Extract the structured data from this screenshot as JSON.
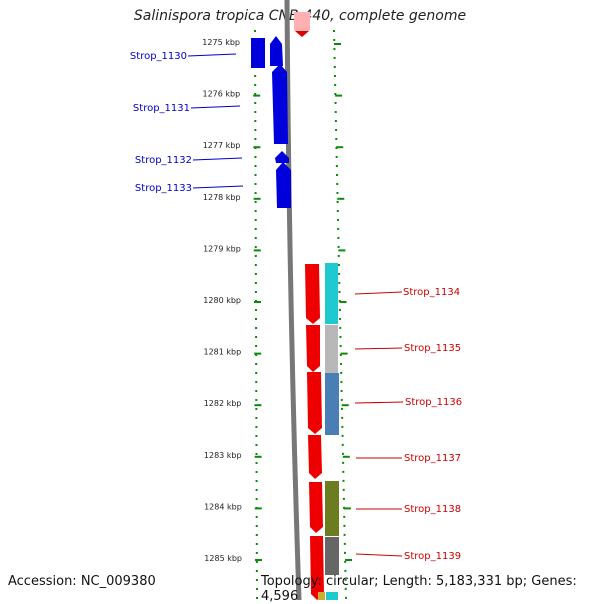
{
  "title": "Salinispora tropica CNB-440, complete genome",
  "accession": "Accession: NC_009380",
  "topology": "Topology: circular; Length: 5,183,331 bp; Genes: 4,596",
  "axis": {
    "unit": "kbp",
    "ticks": [
      {
        "value": 1275,
        "label": "1275 kbp"
      },
      {
        "value": 1276,
        "label": "1276 kbp"
      },
      {
        "value": 1277,
        "label": "1277 kbp"
      },
      {
        "value": 1278,
        "label": "1278 kbp"
      },
      {
        "value": 1279,
        "label": "1279 kbp"
      },
      {
        "value": 1280,
        "label": "1280 kbp"
      },
      {
        "value": 1281,
        "label": "1281 kbp"
      },
      {
        "value": 1282,
        "label": "1282 kbp"
      },
      {
        "value": 1283,
        "label": "1283 kbp"
      },
      {
        "value": 1284,
        "label": "1284 kbp"
      },
      {
        "value": 1285,
        "label": "1285 kbp"
      }
    ]
  },
  "genes_left": [
    {
      "name": "Strop_1130",
      "color": "#0000dd"
    },
    {
      "name": "Strop_1131",
      "color": "#0000dd"
    },
    {
      "name": "Strop_1132",
      "color": "#0000dd"
    },
    {
      "name": "Strop_1133",
      "color": "#0000dd"
    }
  ],
  "genes_right": [
    {
      "name": "Strop_1134",
      "color": "#cc0000",
      "cog_color": "#20c8d0"
    },
    {
      "name": "Strop_1135",
      "color": "#cc0000",
      "cog_color": "#b8b8b8"
    },
    {
      "name": "Strop_1136",
      "color": "#cc0000",
      "cog_color": "#4a7fb5"
    },
    {
      "name": "Strop_1137",
      "color": "#cc0000",
      "cog_color": ""
    },
    {
      "name": "Strop_1138",
      "color": "#cc0000",
      "cog_color": "#6b7d1e"
    },
    {
      "name": "Strop_1139",
      "color": "#cc0000",
      "cog_color": "#666666"
    }
  ]
}
